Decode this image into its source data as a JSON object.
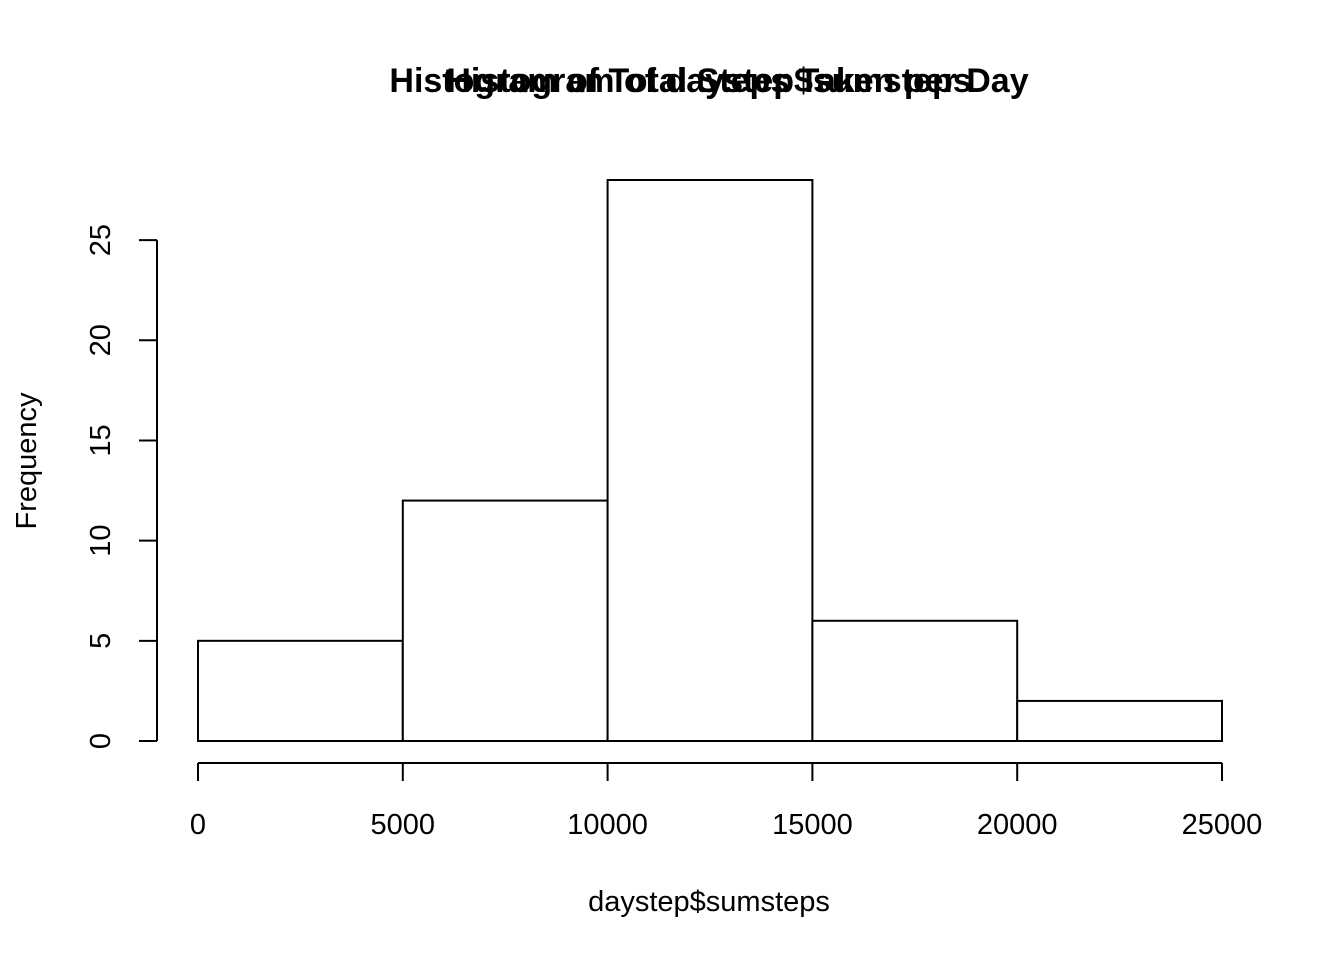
{
  "chart_data": {
    "type": "bar",
    "titles": [
      "Histogram of Total Steps Taken per Day",
      "Histogram of daystep$sumsteps"
    ],
    "xlabel": "daystep$sumsteps",
    "ylabel": "Frequency",
    "bins": [
      {
        "start": 0,
        "end": 5000,
        "count": 5
      },
      {
        "start": 5000,
        "end": 10000,
        "count": 12
      },
      {
        "start": 10000,
        "end": 15000,
        "count": 28
      },
      {
        "start": 15000,
        "end": 20000,
        "count": 6
      },
      {
        "start": 20000,
        "end": 25000,
        "count": 2
      }
    ],
    "xlim": [
      0,
      25000
    ],
    "ylim": [
      0,
      28
    ],
    "x_ticks": [
      0,
      5000,
      10000,
      15000,
      20000,
      25000
    ],
    "y_ticks": [
      0,
      5,
      10,
      15,
      20,
      25
    ],
    "grid": false,
    "legend": "none",
    "bar_fill": "#ffffff",
    "bar_stroke": "#000000"
  }
}
